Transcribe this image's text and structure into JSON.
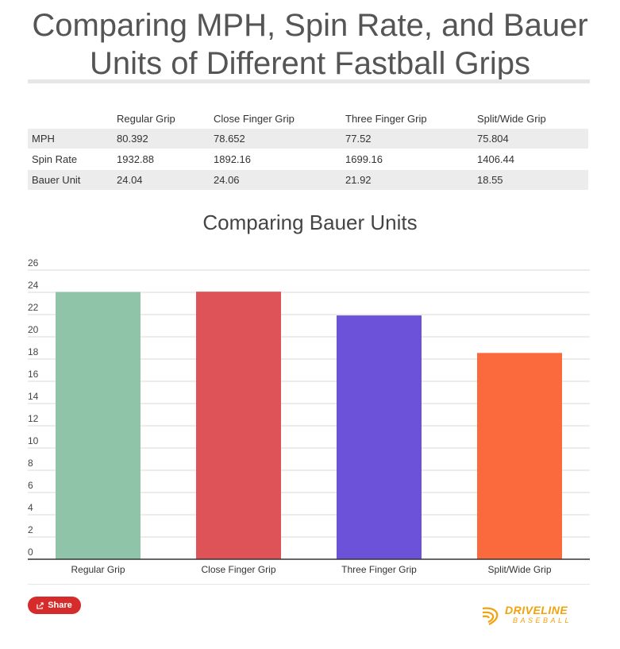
{
  "title": "Comparing MPH, Spin Rate, and Bauer Units of Different Fastball Grips",
  "table": {
    "headers": [
      "",
      "Regular Grip",
      "Close Finger Grip",
      "Three Finger Grip",
      "Split/Wide Grip"
    ],
    "rows": [
      [
        "MPH",
        "80.392",
        "78.652",
        "77.52",
        "75.804"
      ],
      [
        "Spin Rate",
        "1932.88",
        "1892.16",
        "1699.16",
        "1406.44"
      ],
      [
        "Bauer Unit",
        "24.04",
        "24.06",
        "21.92",
        "18.55"
      ]
    ]
  },
  "chart_data": {
    "type": "bar",
    "title": "Comparing Bauer Units",
    "categories": [
      "Regular Grip",
      "Close Finger Grip",
      "Three Finger Grip",
      "Split/Wide Grip"
    ],
    "values": [
      24.04,
      24.06,
      21.92,
      18.55
    ],
    "colors": [
      "#8fc4a8",
      "#dd5357",
      "#6b52d8",
      "#fb6a3c"
    ],
    "ylim": [
      0,
      26
    ],
    "yticks": [
      0,
      2,
      4,
      6,
      8,
      10,
      12,
      14,
      16,
      18,
      20,
      22,
      24,
      26
    ],
    "grid": true,
    "xlabel": "",
    "ylabel": ""
  },
  "share": {
    "label": "Share",
    "icon": "share-icon",
    "color": "#d62b2b"
  },
  "logo": {
    "name": "DRIVELINE",
    "sub": "BASEBALL",
    "color": "#f2a20c"
  }
}
